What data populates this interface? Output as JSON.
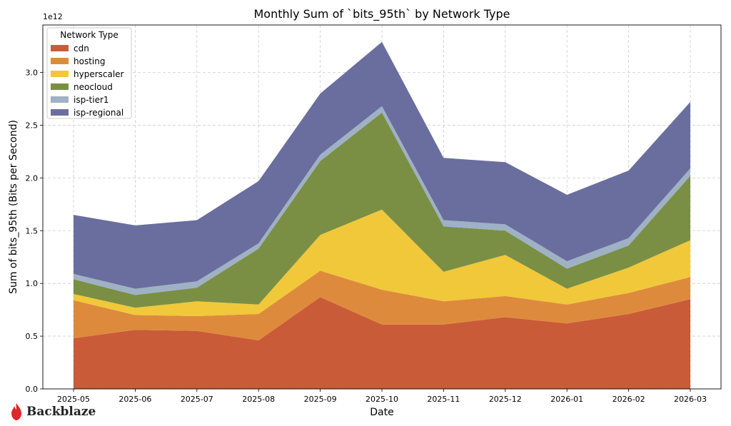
{
  "chart_data": {
    "type": "area",
    "stacked": true,
    "title": "Monthly Sum of `bits_95th` by Network Type",
    "xlabel": "Date",
    "ylabel": "Sum of bits_95th (Bits per Second)",
    "y_scale_label": "1e12",
    "ylim": [
      0,
      3.45
    ],
    "yticks": [
      0.0,
      0.5,
      1.0,
      1.5,
      2.0,
      2.5,
      3.0
    ],
    "ytick_labels": [
      "0.0",
      "0.5",
      "1.0",
      "1.5",
      "2.0",
      "2.5",
      "3.0"
    ],
    "grid": true,
    "categories": [
      "2025-05",
      "2025-06",
      "2025-07",
      "2025-08",
      "2025-09",
      "2025-10",
      "2025-11",
      "2025-12",
      "2026-01",
      "2026-02",
      "2026-03"
    ],
    "legend_title": "Network Type",
    "legend_position": "top-left",
    "series": [
      {
        "name": "cdn",
        "color": "#c95b38",
        "values": [
          0.48,
          0.56,
          0.55,
          0.46,
          0.87,
          0.61,
          0.61,
          0.68,
          0.62,
          0.71,
          0.85
        ]
      },
      {
        "name": "hosting",
        "color": "#de8a3d",
        "values": [
          0.36,
          0.14,
          0.14,
          0.25,
          0.25,
          0.33,
          0.22,
          0.2,
          0.18,
          0.2,
          0.21
        ]
      },
      {
        "name": "hyperscaler",
        "color": "#f0c83a",
        "values": [
          0.06,
          0.07,
          0.14,
          0.09,
          0.34,
          0.76,
          0.28,
          0.39,
          0.15,
          0.24,
          0.35
        ]
      },
      {
        "name": "neocloud",
        "color": "#7a8f44",
        "values": [
          0.14,
          0.12,
          0.13,
          0.53,
          0.7,
          0.92,
          0.43,
          0.23,
          0.19,
          0.21,
          0.61
        ]
      },
      {
        "name": "isp-tier1",
        "color": "#9fb1c4",
        "values": [
          0.05,
          0.06,
          0.06,
          0.05,
          0.06,
          0.06,
          0.06,
          0.06,
          0.07,
          0.07,
          0.07
        ]
      },
      {
        "name": "isp-regional",
        "color": "#6a6e9e",
        "values": [
          0.56,
          0.6,
          0.58,
          0.59,
          0.58,
          0.61,
          0.59,
          0.59,
          0.63,
          0.64,
          0.63
        ]
      }
    ]
  },
  "branding": {
    "logo_text": "Backblaze",
    "logo_color": "#e0252b"
  }
}
